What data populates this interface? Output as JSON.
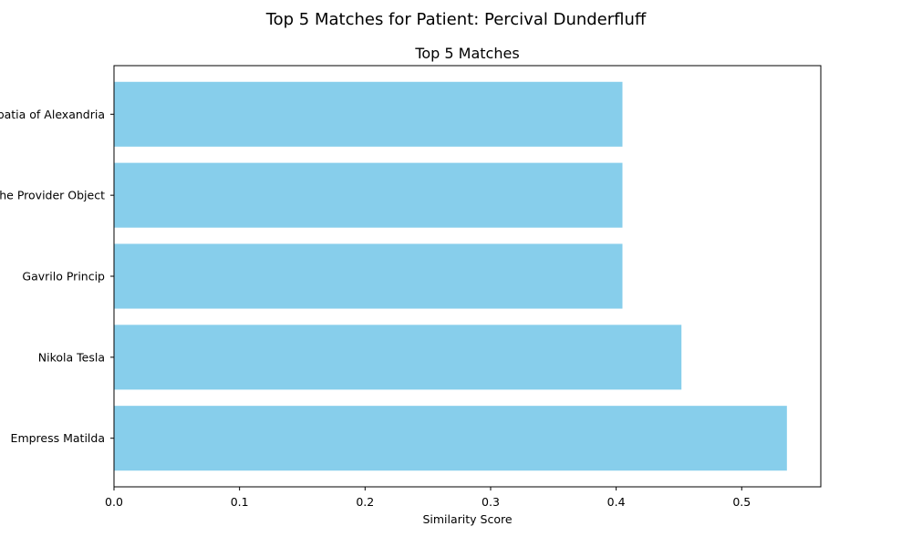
{
  "chart_data": {
    "type": "bar",
    "orientation": "horizontal",
    "suptitle": "Top 5 Matches for Patient: Percival Dunderfluff",
    "title": "Top 5 Matches",
    "xlabel": "Similarity Score",
    "ylabel": "",
    "categories": [
      "Empress Matilda",
      "Nikola Tesla",
      "Gavrilo Princip",
      "The Provider Object",
      "Hypatia of Alexandria"
    ],
    "values": [
      0.536,
      0.452,
      0.405,
      0.405,
      0.405
    ],
    "xlim": [
      0,
      0.563
    ],
    "xticks": [
      "0.0",
      "0.1",
      "0.2",
      "0.3",
      "0.4",
      "0.5"
    ],
    "bar_color": "#87CEEB",
    "grid": false,
    "legend": "none"
  }
}
